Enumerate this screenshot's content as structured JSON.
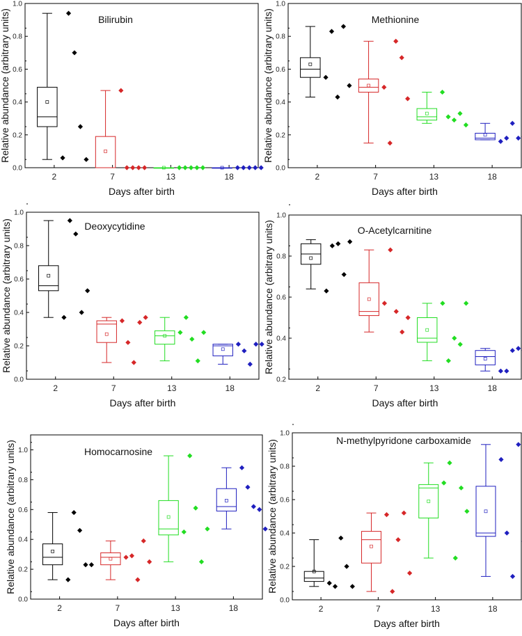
{
  "chart_data": [
    {
      "type": "box",
      "title": "Bilirubin",
      "xlabel": "Days after birth",
      "ylabel": "Relative abundance (arbitrary units)",
      "ylim": [
        0,
        1.0
      ],
      "yticks": [
        "0.0",
        "0.2",
        "0.4",
        "0.6",
        "0.8",
        "1.0"
      ],
      "categories": [
        "2",
        "7",
        "13",
        "18"
      ],
      "colors": [
        "#000000",
        "#d62728",
        "#22dd22",
        "#1f1fbf"
      ],
      "boxes": [
        {
          "min": 0.05,
          "q1": 0.25,
          "median": 0.31,
          "q3": 0.49,
          "max": 0.94,
          "mean": 0.4
        },
        {
          "min": 0.0,
          "q1": 0.0,
          "median": 0.0,
          "q3": 0.19,
          "max": 0.47,
          "mean": 0.1
        },
        {
          "min": 0.0,
          "q1": 0.0,
          "median": 0.0,
          "q3": 0.0,
          "max": 0.0,
          "mean": 0.0
        },
        {
          "min": 0.0,
          "q1": 0.0,
          "median": 0.0,
          "q3": 0.0,
          "max": 0.0,
          "mean": 0.0
        }
      ],
      "points": [
        [
          0.06,
          0.94,
          0.7,
          0.25,
          0.05
        ],
        [
          0.47,
          0.0,
          0.0,
          0.0,
          0.0
        ],
        [
          0.0,
          0.0,
          0.0,
          0.0,
          0.0
        ],
        [
          0.0,
          0.0,
          0.0,
          0.0,
          0.0
        ]
      ]
    },
    {
      "type": "box",
      "title": "Methionine",
      "xlabel": "Days after birth",
      "ylabel": "Relative abundance (arbitrary units)",
      "ylim": [
        0,
        1.0
      ],
      "yticks": [
        "0.0",
        "0.2",
        "0.4",
        "0.6",
        "0.8",
        "1.0"
      ],
      "categories": [
        "2",
        "7",
        "13",
        "18"
      ],
      "colors": [
        "#000000",
        "#d62728",
        "#22dd22",
        "#1f1fbf"
      ],
      "boxes": [
        {
          "min": 0.43,
          "q1": 0.55,
          "median": 0.6,
          "q3": 0.67,
          "max": 0.86,
          "mean": 0.63
        },
        {
          "min": 0.15,
          "q1": 0.46,
          "median": 0.49,
          "q3": 0.54,
          "max": 0.77,
          "mean": 0.5
        },
        {
          "min": 0.27,
          "q1": 0.29,
          "median": 0.31,
          "q3": 0.36,
          "max": 0.46,
          "mean": 0.33
        },
        {
          "min": 0.17,
          "q1": 0.17,
          "median": 0.18,
          "q3": 0.21,
          "max": 0.27,
          "mean": 0.2
        }
      ],
      "points": [
        [
          0.55,
          0.83,
          0.43,
          0.86,
          0.5
        ],
        [
          0.49,
          0.15,
          0.77,
          0.67,
          0.42
        ],
        [
          0.46,
          0.31,
          0.29,
          0.33,
          0.26
        ],
        [
          0.16,
          0.18,
          0.27,
          0.18,
          0.19
        ]
      ]
    },
    {
      "type": "box",
      "title": "Deoxycytidine",
      "xlabel": "Days after birth",
      "ylabel": "Relative abundance (arbitrary units)",
      "ylim": [
        0,
        1.0
      ],
      "yticks": [
        "0.0",
        "0.2",
        "0.4",
        "0.6",
        "0.8",
        "1.0"
      ],
      "categories": [
        "2",
        "7",
        "13",
        "18"
      ],
      "colors": [
        "#000000",
        "#d62728",
        "#22dd22",
        "#1f1fbf"
      ],
      "boxes": [
        {
          "min": 0.37,
          "q1": 0.53,
          "median": 0.56,
          "q3": 0.68,
          "max": 0.95,
          "mean": 0.62
        },
        {
          "min": 0.1,
          "q1": 0.22,
          "median": 0.33,
          "q3": 0.35,
          "max": 0.37,
          "mean": 0.27
        },
        {
          "min": 0.11,
          "q1": 0.21,
          "median": 0.26,
          "q3": 0.29,
          "max": 0.37,
          "mean": 0.26
        },
        {
          "min": 0.09,
          "q1": 0.14,
          "median": 0.2,
          "q3": 0.21,
          "max": 0.21,
          "mean": 0.18
        }
      ],
      "points": [
        [
          0.37,
          0.95,
          0.87,
          0.4,
          0.53
        ],
        [
          0.35,
          0.22,
          0.1,
          0.34,
          0.37
        ],
        [
          0.28,
          0.37,
          0.24,
          0.11,
          0.28
        ],
        [
          0.21,
          0.17,
          0.09,
          0.21,
          0.21
        ]
      ]
    },
    {
      "type": "box",
      "title": "O-Acetylcarnitine",
      "xlabel": "Days after birth",
      "ylabel": "Relative abundance (arbitrary units)",
      "ylim": [
        0.2,
        1.0
      ],
      "yticks": [
        "0.2",
        "0.4",
        "0.6",
        "0.8",
        "1.0"
      ],
      "categories": [
        "2",
        "7",
        "13",
        "18"
      ],
      "colors": [
        "#000000",
        "#d62728",
        "#22dd22",
        "#1f1fbf"
      ],
      "boxes": [
        {
          "min": 0.64,
          "q1": 0.76,
          "median": 0.81,
          "q3": 0.86,
          "max": 0.88,
          "mean": 0.79
        },
        {
          "min": 0.43,
          "q1": 0.51,
          "median": 0.53,
          "q3": 0.67,
          "max": 0.83,
          "mean": 0.59
        },
        {
          "min": 0.29,
          "q1": 0.38,
          "median": 0.4,
          "q3": 0.5,
          "max": 0.57,
          "mean": 0.44
        },
        {
          "min": 0.24,
          "q1": 0.27,
          "median": 0.31,
          "q3": 0.34,
          "max": 0.35,
          "mean": 0.3
        }
      ],
      "points": [
        [
          0.63,
          0.85,
          0.86,
          0.71,
          0.87
        ],
        [
          0.57,
          0.83,
          0.53,
          0.43,
          0.5
        ],
        [
          0.57,
          0.29,
          0.4,
          0.37,
          0.57
        ],
        [
          0.24,
          0.24,
          0.34,
          0.35,
          0.34
        ]
      ]
    },
    {
      "type": "box",
      "title": "Homocarnosine",
      "xlabel": "Days after birth",
      "ylabel": "Relative abundance (arbitrary units)",
      "ylim": [
        0,
        1.1
      ],
      "yticks": [
        "0.0",
        "0.2",
        "0.4",
        "0.6",
        "0.8",
        "1.0"
      ],
      "categories": [
        "2",
        "7",
        "13",
        "18"
      ],
      "colors": [
        "#000000",
        "#d62728",
        "#22dd22",
        "#1f1fbf"
      ],
      "boxes": [
        {
          "min": 0.13,
          "q1": 0.23,
          "median": 0.28,
          "q3": 0.37,
          "max": 0.58,
          "mean": 0.32
        },
        {
          "min": 0.13,
          "q1": 0.23,
          "median": 0.28,
          "q3": 0.31,
          "max": 0.39,
          "mean": 0.27
        },
        {
          "min": 0.25,
          "q1": 0.43,
          "median": 0.47,
          "q3": 0.66,
          "max": 0.96,
          "mean": 0.55
        },
        {
          "min": 0.47,
          "q1": 0.59,
          "median": 0.62,
          "q3": 0.74,
          "max": 0.88,
          "mean": 0.66
        }
      ],
      "points": [
        [
          0.13,
          0.58,
          0.46,
          0.23,
          0.23
        ],
        [
          0.28,
          0.29,
          0.13,
          0.39,
          0.25
        ],
        [
          0.45,
          0.96,
          0.61,
          0.25,
          0.47
        ],
        [
          0.88,
          0.75,
          0.62,
          0.6,
          0.47
        ]
      ]
    },
    {
      "type": "box",
      "title": "N-methylpyridone carboxamide",
      "xlabel": "Days after birth",
      "ylabel": "Relative abundance (arbitrary units)",
      "ylim": [
        0,
        1.0
      ],
      "yticks": [
        "0.0",
        "0.2",
        "0.4",
        "0.6",
        "0.8",
        "1.0"
      ],
      "categories": [
        "2",
        "7",
        "13",
        "18"
      ],
      "colors": [
        "#000000",
        "#d62728",
        "#22dd22",
        "#1f1fbf"
      ],
      "boxes": [
        {
          "min": 0.08,
          "q1": 0.11,
          "median": 0.13,
          "q3": 0.17,
          "max": 0.36,
          "mean": 0.17
        },
        {
          "min": 0.05,
          "q1": 0.22,
          "median": 0.36,
          "q3": 0.41,
          "max": 0.52,
          "mean": 0.32
        },
        {
          "min": 0.25,
          "q1": 0.49,
          "median": 0.67,
          "q3": 0.69,
          "max": 0.82,
          "mean": 0.59
        },
        {
          "min": 0.14,
          "q1": 0.38,
          "median": 0.4,
          "q3": 0.68,
          "max": 0.93,
          "mean": 0.53
        }
      ],
      "points": [
        [
          0.1,
          0.08,
          0.37,
          0.2,
          0.08
        ],
        [
          0.51,
          0.05,
          0.36,
          0.52,
          0.16
        ],
        [
          0.7,
          0.82,
          0.25,
          0.67,
          0.53
        ],
        [
          0.84,
          0.4,
          0.14,
          0.93,
          0.35
        ]
      ]
    }
  ]
}
